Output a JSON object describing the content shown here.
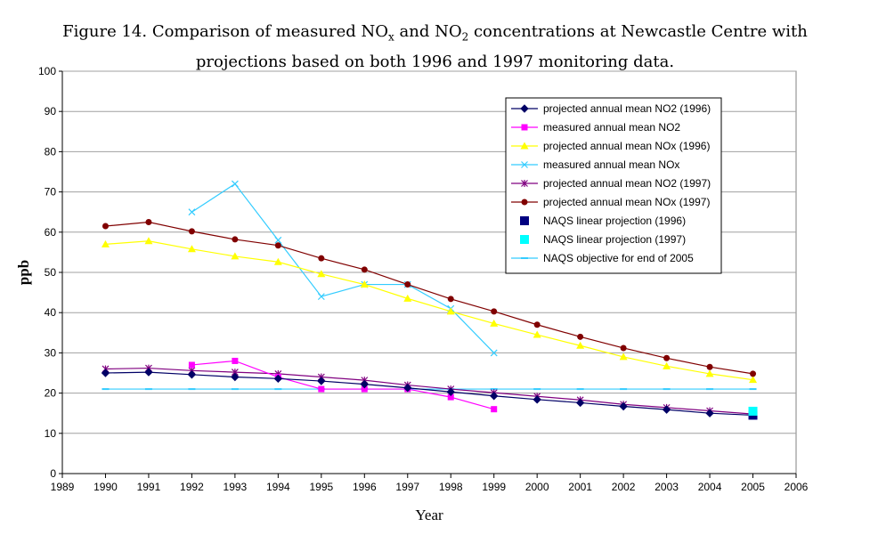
{
  "title": {
    "line1_pre": "Figure 14. Comparison of measured NO",
    "line1_sub1": "x",
    "line1_mid": " and NO",
    "line1_sub2": "2",
    "line1_post": " concentrations at Newcastle Centre with",
    "line2": "projections based on both 1996 and 1997 monitoring data."
  },
  "chart_data": {
    "type": "line",
    "xlabel": "Year",
    "ylabel": "ppb",
    "xlim": [
      1989,
      2006
    ],
    "ylim": [
      0,
      100
    ],
    "x_ticks": [
      1989,
      1990,
      1991,
      1992,
      1993,
      1994,
      1995,
      1996,
      1997,
      1998,
      1999,
      2000,
      2001,
      2002,
      2003,
      2004,
      2005,
      2006
    ],
    "y_ticks": [
      0,
      10,
      20,
      30,
      40,
      50,
      60,
      70,
      80,
      90,
      100
    ],
    "grid": "horizontal",
    "legend_position": "top-right",
    "series": [
      {
        "name": "projected annual mean NO2 (1996)",
        "color": "#000066",
        "marker": "diamond",
        "line": true,
        "x": [
          1990,
          1991,
          1992,
          1993,
          1994,
          1995,
          1996,
          1997,
          1998,
          1999,
          2000,
          2001,
          2002,
          2003,
          2004,
          2005
        ],
        "y": [
          25.0,
          25.2,
          24.6,
          24.0,
          23.6,
          23.0,
          22.2,
          21.3,
          20.3,
          19.3,
          18.4,
          17.6,
          16.7,
          15.9,
          15.0,
          14.5
        ]
      },
      {
        "name": "measured annual mean NO2",
        "color": "#ff00ff",
        "marker": "square",
        "line": true,
        "x": [
          1992,
          1993,
          1994,
          1995,
          1996,
          1997,
          1998,
          1999
        ],
        "y": [
          27,
          28,
          24,
          21,
          21,
          21,
          19,
          16
        ]
      },
      {
        "name": "projected annual mean NOx (1996)",
        "color": "#ffff00",
        "marker": "triangle",
        "line": true,
        "x": [
          1990,
          1991,
          1992,
          1993,
          1994,
          1995,
          1996,
          1997,
          1998,
          1999,
          2000,
          2001,
          2002,
          2003,
          2004,
          2005
        ],
        "y": [
          57.0,
          57.8,
          55.8,
          54.0,
          52.6,
          49.6,
          47.0,
          43.5,
          40.3,
          37.3,
          34.5,
          31.8,
          29.0,
          26.7,
          24.8,
          23.3
        ]
      },
      {
        "name": "measured annual mean NOx",
        "color": "#33ccff",
        "marker": "x",
        "line": true,
        "x": [
          1992,
          1993,
          1994,
          1995,
          1996,
          1997,
          1998,
          1999
        ],
        "y": [
          65,
          72,
          58,
          44,
          47,
          47,
          41,
          30
        ]
      },
      {
        "name": "projected annual mean NO2 (1997)",
        "color": "#800080",
        "marker": "star",
        "line": true,
        "x": [
          1990,
          1991,
          1992,
          1993,
          1994,
          1995,
          1996,
          1997,
          1998,
          1999,
          2000,
          2001,
          2002,
          2003,
          2004,
          2005
        ],
        "y": [
          26.0,
          26.2,
          25.6,
          25.2,
          24.8,
          24.0,
          23.2,
          22.0,
          21.0,
          20.1,
          19.2,
          18.3,
          17.2,
          16.4,
          15.6,
          14.8
        ]
      },
      {
        "name": "projected annual mean NOx (1997)",
        "color": "#800000",
        "marker": "circle",
        "line": true,
        "x": [
          1990,
          1991,
          1992,
          1993,
          1994,
          1995,
          1996,
          1997,
          1998,
          1999,
          2000,
          2001,
          2002,
          2003,
          2004,
          2005
        ],
        "y": [
          61.5,
          62.5,
          60.2,
          58.2,
          56.7,
          53.5,
          50.7,
          47.0,
          43.4,
          40.3,
          37.0,
          34.0,
          31.2,
          28.7,
          26.5,
          24.8
        ]
      },
      {
        "name": "NAQS linear projection (1996)",
        "color": "#000080",
        "marker": "bigsquare",
        "line": false,
        "x": [
          2005
        ],
        "y": [
          14.5
        ]
      },
      {
        "name": "NAQS linear projection (1997)",
        "color": "#00ffff",
        "marker": "bigsquare",
        "line": false,
        "x": [
          2005
        ],
        "y": [
          15.5
        ]
      },
      {
        "name": "NAQS objective for end of 2005",
        "color": "#33ccff",
        "marker": "dash",
        "line": true,
        "x": [
          1990,
          1991,
          1992,
          1993,
          1994,
          1995,
          1996,
          1997,
          1998,
          1999,
          2000,
          2001,
          2002,
          2003,
          2004,
          2005
        ],
        "y": [
          21,
          21,
          21,
          21,
          21,
          21,
          21,
          21,
          21,
          21,
          21,
          21,
          21,
          21,
          21,
          21
        ]
      }
    ]
  }
}
